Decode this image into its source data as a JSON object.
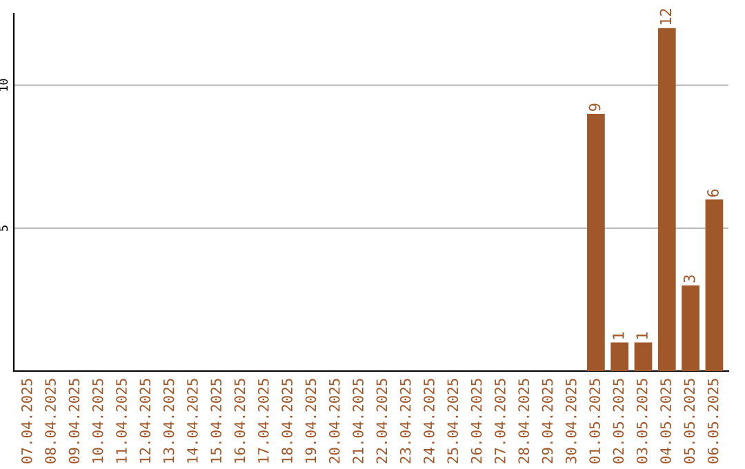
{
  "chart_data": {
    "type": "bar",
    "categories": [
      "07.04.2025",
      "08.04.2025",
      "09.04.2025",
      "10.04.2025",
      "11.04.2025",
      "12.04.2025",
      "13.04.2025",
      "14.04.2025",
      "15.04.2025",
      "16.04.2025",
      "17.04.2025",
      "18.04.2025",
      "19.04.2025",
      "20.04.2025",
      "21.04.2025",
      "22.04.2025",
      "23.04.2025",
      "24.04.2025",
      "25.04.2025",
      "26.04.2025",
      "27.04.2025",
      "28.04.2025",
      "29.04.2025",
      "30.04.2025",
      "01.05.2025",
      "02.05.2025",
      "03.05.2025",
      "04.05.2025",
      "05.05.2025",
      "06.05.2025"
    ],
    "values": [
      0,
      0,
      0,
      0,
      0,
      0,
      0,
      0,
      0,
      0,
      0,
      0,
      0,
      0,
      0,
      0,
      0,
      0,
      0,
      0,
      0,
      0,
      0,
      0,
      9,
      1,
      1,
      12,
      3,
      6
    ],
    "value_labels": [
      null,
      null,
      null,
      null,
      null,
      null,
      null,
      null,
      null,
      null,
      null,
      null,
      null,
      null,
      null,
      null,
      null,
      null,
      null,
      null,
      null,
      null,
      null,
      null,
      "9",
      "1",
      "1",
      "12",
      "3",
      "6"
    ],
    "color": "#a0582a",
    "ylim": [
      0,
      12.5
    ],
    "yticks": [
      5,
      10
    ],
    "grid": "y"
  }
}
